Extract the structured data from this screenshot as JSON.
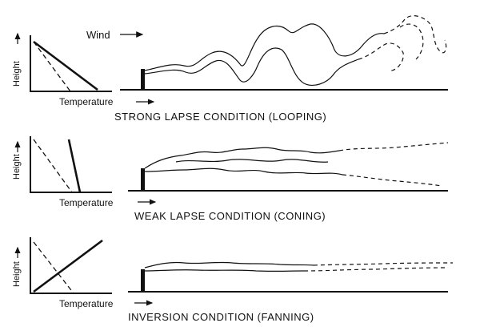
{
  "wind_label": "Wind",
  "panels": [
    {
      "y_axis_label": "Height",
      "x_axis_label": "Temperature",
      "caption": "STRONG LAPSE CONDITION (LOOPING)"
    },
    {
      "y_axis_label": "Height",
      "x_axis_label": "Temperature",
      "caption": "WEAK LAPSE CONDITION (CONING)"
    },
    {
      "y_axis_label": "Height",
      "x_axis_label": "Temperature",
      "caption": "INVERSION CONDITION (FANNING)"
    }
  ]
}
